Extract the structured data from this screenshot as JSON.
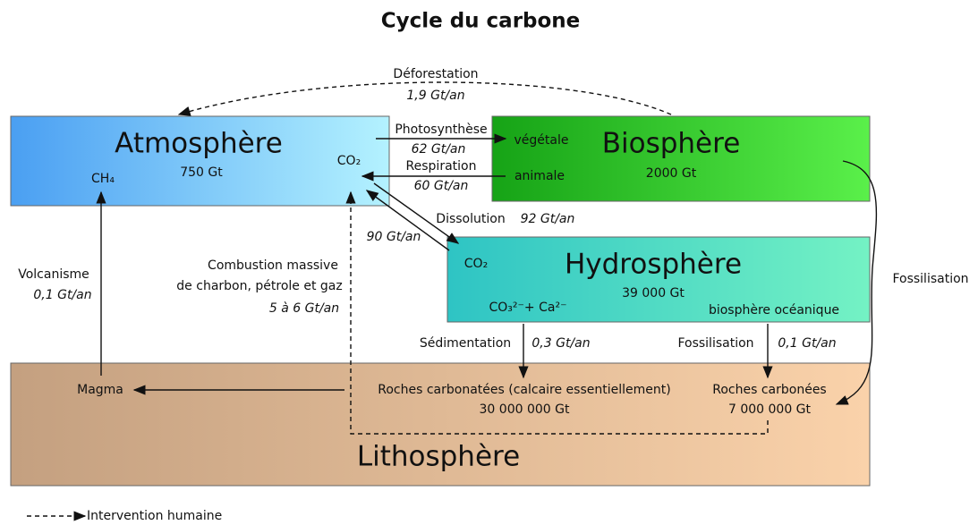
{
  "title": "Cycle du carbone",
  "reservoirs": {
    "atmosphere": {
      "name": "Atmosphère",
      "amount": "750 Gt",
      "ch4": "CH₄",
      "co2": "CO₂"
    },
    "biosphere": {
      "name": "Biosphère",
      "amount": "2000 Gt",
      "plant": "végétale",
      "animal": "animale"
    },
    "hydrosphere": {
      "name": "Hydrosphère",
      "amount": "39 000 Gt",
      "co2": "CO₂",
      "carbonate": "CO₃²⁻+ Ca²⁻",
      "ocean_life": "biosphère océanique"
    },
    "lithosphere": {
      "name": "Lithosphère",
      "magma": "Magma",
      "carbonate_rocks": "Roches carbonatées (calcaire essentiellement)",
      "carbonate_amount": "30 000 000 Gt",
      "carbon_rocks": "Roches carbonées",
      "carbon_amount": "7 000 000 Gt"
    }
  },
  "fluxes": {
    "deforestation": {
      "label": "Déforestation",
      "rate": "1,9 Gt/an"
    },
    "photosynthesis": {
      "label": "Photosynthèse",
      "rate": "62 Gt/an"
    },
    "respiration": {
      "label": "Respiration",
      "rate": "60 Gt/an"
    },
    "dissolution": {
      "label": "Dissolution",
      "rate": "92 Gt/an"
    },
    "degassing": {
      "rate": "90 Gt/an"
    },
    "volcanism": {
      "label": "Volcanisme",
      "rate": "0,1 Gt/an"
    },
    "combustion": {
      "label_1": "Combustion massive",
      "label_2": "de charbon, pétrole et gaz",
      "rate": "5 à 6 Gt/an"
    },
    "sedimentation": {
      "label": "Sédimentation",
      "rate": "0,3 Gt/an"
    },
    "ocean_fossilisation": {
      "label": "Fossilisation",
      "rate": "0,1 Gt/an"
    },
    "land_fossilisation": {
      "label": "Fossilisation"
    }
  },
  "legend": {
    "human": "Intervention humaine"
  }
}
